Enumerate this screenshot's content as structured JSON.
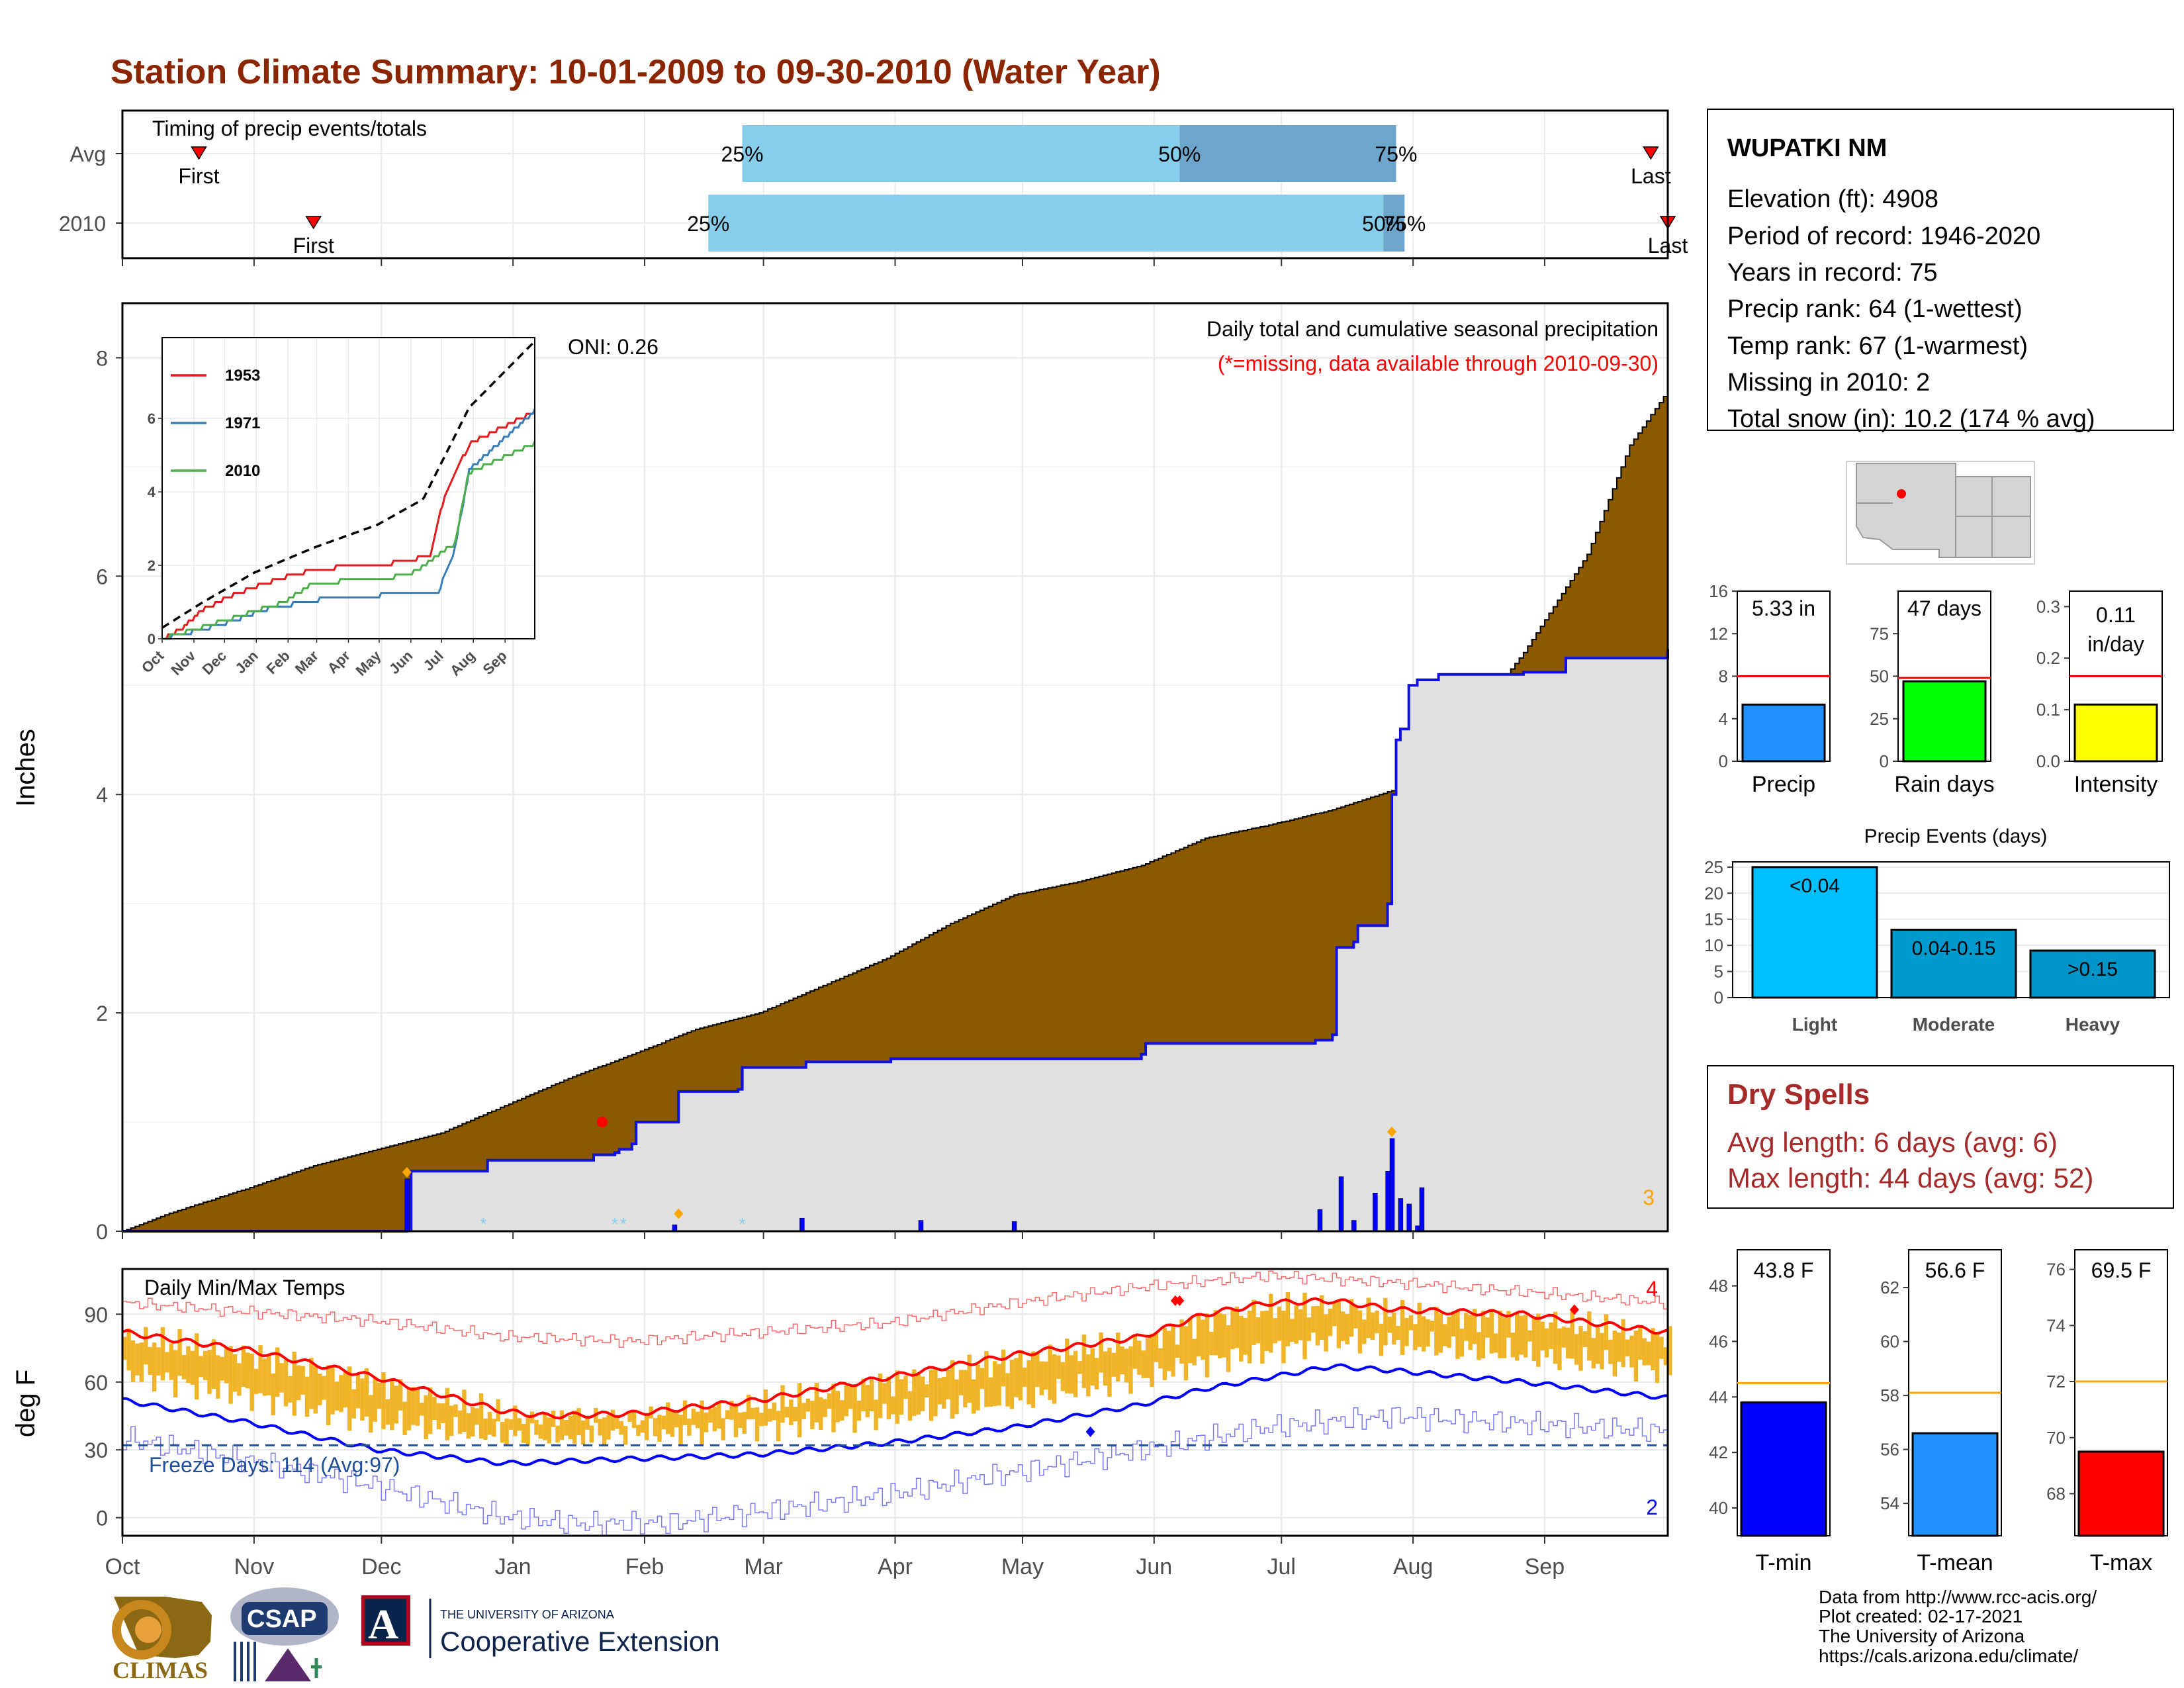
{
  "title": "Station Climate Summary: 10-01-2009 to 09-30-2010 (Water Year)",
  "colors": {
    "title": "#8B2500",
    "precip_cum": "#8B5A00",
    "precip_2010": "#1010E0",
    "fill_2010": "#E0E0E0",
    "tmax": "#FF0000",
    "tmin": "#0000FF",
    "daily_bar": "#F0B429",
    "dry_spell": "#A52A2A",
    "timing_light": "#87CEEB",
    "timing_dark": "#6CA6CD"
  },
  "months": [
    "Oct",
    "Nov",
    "Dec",
    "Jan",
    "Feb",
    "Mar",
    "Apr",
    "May",
    "Jun",
    "Jul",
    "Aug",
    "Sep"
  ],
  "timing": {
    "title": "Timing of precip events/totals",
    "rows": [
      {
        "label": "Avg",
        "first_day": 18,
        "last_day": 360,
        "p25": 146,
        "p50": 249,
        "p75": 300,
        "first_label": "First",
        "last_label": "Last",
        "p25_label": "25%",
        "p50_label": "50%",
        "p75_label": "75%"
      },
      {
        "label": "2010",
        "first_day": 45,
        "last_day": 364,
        "p25": 138,
        "p50": 297,
        "p75": 302,
        "first_label": "First",
        "last_label": "Last",
        "p25_label": "25%",
        "p50_label": "50%",
        "p75_label": "75%"
      }
    ]
  },
  "station": {
    "name": "WUPATKI NM",
    "lines": [
      "Elevation (ft): 4908",
      "Period of record: 1946-2020",
      "Years in record: 75",
      "Precip rank: 64 (1-wettest)",
      "Temp rank: 67 (1-warmest)",
      "Missing in 2010: 2",
      "Total snow (in): 10.2 (174 % avg)"
    ]
  },
  "precip_panel": {
    "title": "Daily total and cumulative seasonal precipitation",
    "note": "(*=missing, data available through 2010-09-30)",
    "ylabel": "Inches",
    "ylim": [
      0,
      8.5
    ],
    "yticks": [
      0,
      2,
      4,
      6,
      8
    ],
    "corner_count": "3",
    "oni": "ONI: 0.26"
  },
  "inset": {
    "yticks": [
      0,
      2,
      4,
      6
    ],
    "ylim": [
      0,
      8.2
    ],
    "legend": [
      "1953",
      "1971",
      "2010"
    ],
    "series_colors": [
      "#E41A1C",
      "#377EB8",
      "#4DAF4A"
    ]
  },
  "temp_panel": {
    "title": "Daily Min/Max Temps",
    "ylabel": "deg F",
    "ylim": [
      -8,
      110
    ],
    "yticks": [
      0,
      30,
      60,
      90
    ],
    "freeze_text": "Freeze Days: 114 (Avg:97)",
    "freeze_line": 32,
    "count_max": "4",
    "count_min": "2"
  },
  "mini_bars": [
    {
      "label": "Precip",
      "value_label": "5.33 in",
      "value": 5.33,
      "avg": 8.0,
      "ylim": [
        0,
        16
      ],
      "yticks": [
        "0",
        "4",
        "8",
        "12",
        "16"
      ],
      "color": "#1E90FF"
    },
    {
      "label": "Rain days",
      "value_label": "47 days",
      "value": 47,
      "avg": 49,
      "ylim": [
        0,
        100
      ],
      "yticks": [
        "0",
        "25",
        "50",
        "75"
      ],
      "color": "#00FF00"
    },
    {
      "label": "Intensity",
      "value_label": "0.11 in/day",
      "value": 0.11,
      "avg": 0.165,
      "ylim": [
        0,
        0.33
      ],
      "yticks": [
        "0.0",
        "0.1",
        "0.2",
        "0.3"
      ],
      "color": "#FFFF00"
    }
  ],
  "events": {
    "title": "Precip Events (days)",
    "categories": [
      "Light",
      "Moderate",
      "Heavy"
    ],
    "values": [
      25,
      13,
      9
    ],
    "bar_labels": [
      "<0.04",
      "0.04-0.15",
      ">0.15"
    ],
    "yticks": [
      "0",
      "5",
      "10",
      "15",
      "20",
      "25"
    ],
    "colors": [
      "#00BFFF",
      "#009ACD",
      "#0095C9"
    ]
  },
  "dry_spells": {
    "title": "Dry Spells",
    "avg_line": "Avg length: 6 days (avg: 6)",
    "max_line": "Max length: 44 days (avg: 52)"
  },
  "temp_bars": [
    {
      "label": "T-min",
      "value_label": "43.8 F",
      "value": 43.8,
      "avg": 44.5,
      "ylim": [
        39,
        49.3
      ],
      "yticks": [
        "40",
        "42",
        "44",
        "46",
        "48"
      ],
      "color": "#0000FF"
    },
    {
      "label": "T-mean",
      "value_label": "56.6 F",
      "value": 56.6,
      "avg": 58.1,
      "ylim": [
        52.8,
        63.4
      ],
      "yticks": [
        "54",
        "56",
        "58",
        "60",
        "62"
      ],
      "color": "#1E90FF"
    },
    {
      "label": "T-max",
      "value_label": "69.5 F",
      "value": 69.5,
      "avg": 72.0,
      "ylim": [
        66.5,
        76.7
      ],
      "yticks": [
        "68",
        "70",
        "72",
        "74",
        "76"
      ],
      "color": "#FF0000"
    }
  ],
  "footer": [
    "Data from http://www.rcc-acis.org/",
    "Plot created: 02-17-2021",
    "The University of Arizona",
    "https://cals.arizona.edu/climate/"
  ],
  "logos": {
    "climas": "CLIMAS",
    "csap": "CSAP",
    "ua_small": "THE UNIVERSITY OF ARIZONA",
    "ua_big": "Cooperative Extension",
    "ua_letter": "A"
  },
  "chart_data": [
    {
      "type": "area",
      "title": "Daily total and cumulative seasonal precipitation",
      "ylabel": "Inches",
      "ylim": [
        0,
        8.5
      ],
      "cumulative_avg_knots": [
        [
          0,
          0
        ],
        [
          10,
          0.15
        ],
        [
          30,
          0.4
        ],
        [
          45,
          0.6
        ],
        [
          60,
          0.75
        ],
        [
          75,
          0.9
        ],
        [
          90,
          1.15
        ],
        [
          105,
          1.4
        ],
        [
          120,
          1.62
        ],
        [
          135,
          1.85
        ],
        [
          150,
          2.0
        ],
        [
          165,
          2.25
        ],
        [
          180,
          2.5
        ],
        [
          195,
          2.82
        ],
        [
          210,
          3.08
        ],
        [
          225,
          3.2
        ],
        [
          240,
          3.35
        ],
        [
          255,
          3.6
        ],
        [
          270,
          3.72
        ],
        [
          285,
          3.86
        ],
        [
          300,
          4.05
        ],
        [
          315,
          4.55
        ],
        [
          330,
          5.3
        ],
        [
          345,
          6.2
        ],
        [
          355,
          7.2
        ],
        [
          364,
          7.7
        ]
      ],
      "cumulative_2010_steps": [
        [
          0,
          0
        ],
        [
          67,
          0.02
        ],
        [
          68,
          0.55
        ],
        [
          85,
          0.55
        ],
        [
          86,
          0.65
        ],
        [
          110,
          0.65
        ],
        [
          111,
          0.7
        ],
        [
          116,
          0.72
        ],
        [
          117,
          0.75
        ],
        [
          120,
          0.8
        ],
        [
          121,
          1.0
        ],
        [
          130,
          1.0
        ],
        [
          131,
          1.28
        ],
        [
          145,
          1.3
        ],
        [
          146,
          1.5
        ],
        [
          160,
          1.5
        ],
        [
          161,
          1.55
        ],
        [
          180,
          1.55
        ],
        [
          181,
          1.58
        ],
        [
          240,
          1.62
        ],
        [
          241,
          1.72
        ],
        [
          280,
          1.72
        ],
        [
          281,
          1.75
        ],
        [
          285,
          1.8
        ],
        [
          286,
          2.6
        ],
        [
          290,
          2.65
        ],
        [
          291,
          2.8
        ],
        [
          298,
          3.0
        ],
        [
          299,
          4.0
        ],
        [
          300,
          4.5
        ],
        [
          301,
          4.6
        ],
        [
          303,
          5.0
        ],
        [
          305,
          5.05
        ],
        [
          310,
          5.1
        ],
        [
          330,
          5.12
        ],
        [
          340,
          5.25
        ],
        [
          364,
          5.33
        ]
      ],
      "daily_bars_2010": [
        [
          67,
          0.48
        ],
        [
          130,
          0.06
        ],
        [
          160,
          0.12
        ],
        [
          188,
          0.1
        ],
        [
          210,
          0.09
        ],
        [
          305,
          0.05
        ],
        [
          282,
          0.2
        ],
        [
          287,
          0.5
        ],
        [
          290,
          0.1
        ],
        [
          295,
          0.35
        ],
        [
          298,
          0.55
        ],
        [
          299,
          0.85
        ],
        [
          301,
          0.3
        ],
        [
          303,
          0.25
        ],
        [
          306,
          0.4
        ]
      ]
    },
    {
      "type": "line",
      "title": "",
      "series": [
        {
          "name": "1953",
          "knots": [
            [
              0,
              0
            ],
            [
              20,
              0.3
            ],
            [
              40,
              0.8
            ],
            [
              70,
              1.2
            ],
            [
              110,
              1.6
            ],
            [
              150,
              1.9
            ],
            [
              200,
              2.0
            ],
            [
              240,
              2.1
            ],
            [
              262,
              2.3
            ],
            [
              275,
              3.8
            ],
            [
              300,
              5.3
            ],
            [
              364,
              6.2
            ]
          ]
        },
        {
          "name": "1971",
          "knots": [
            [
              0,
              0
            ],
            [
              30,
              0.2
            ],
            [
              60,
              0.4
            ],
            [
              100,
              0.8
            ],
            [
              160,
              1.1
            ],
            [
              220,
              1.2
            ],
            [
              270,
              1.3
            ],
            [
              285,
              2.3
            ],
            [
              300,
              4.6
            ],
            [
              364,
              6.2
            ]
          ]
        },
        {
          "name": "2010",
          "knots": [
            [
              0,
              0
            ],
            [
              67,
              0.55
            ],
            [
              120,
              1.0
            ],
            [
              146,
              1.5
            ],
            [
              241,
              1.72
            ],
            [
              286,
              2.6
            ],
            [
              299,
              4.5
            ],
            [
              364,
              5.33
            ]
          ]
        },
        {
          "name": "",
          "knots": [
            [
              0,
              0.3
            ],
            [
              40,
              1.0
            ],
            [
              90,
              1.8
            ],
            [
              150,
              2.5
            ],
            [
              210,
              3.1
            ],
            [
              255,
              3.8
            ],
            [
              300,
              6.3
            ],
            [
              364,
              8.1
            ]
          ]
        }
      ]
    },
    {
      "type": "line",
      "title": "Daily Min/Max Temps",
      "ylabel": "deg F",
      "ylim": [
        -8,
        110
      ],
      "tmax_smooth_knots": [
        [
          0,
          82
        ],
        [
          30,
          74
        ],
        [
          60,
          62
        ],
        [
          90,
          47
        ],
        [
          100,
          45
        ],
        [
          120,
          46
        ],
        [
          150,
          52
        ],
        [
          180,
          62
        ],
        [
          210,
          72
        ],
        [
          240,
          80
        ],
        [
          255,
          90
        ],
        [
          270,
          95
        ],
        [
          285,
          96
        ],
        [
          300,
          92
        ],
        [
          330,
          90
        ],
        [
          364,
          82
        ]
      ],
      "tmin_smooth_knots": [
        [
          0,
          52
        ],
        [
          30,
          42
        ],
        [
          60,
          30
        ],
        [
          90,
          24
        ],
        [
          120,
          26
        ],
        [
          150,
          28
        ],
        [
          180,
          33
        ],
        [
          210,
          40
        ],
        [
          240,
          50
        ],
        [
          255,
          57
        ],
        [
          270,
          62
        ],
        [
          285,
          67
        ],
        [
          300,
          65
        ],
        [
          330,
          60
        ],
        [
          364,
          53
        ]
      ],
      "record_max_knots": [
        [
          0,
          95
        ],
        [
          60,
          87
        ],
        [
          90,
          80
        ],
        [
          120,
          78
        ],
        [
          150,
          82
        ],
        [
          180,
          86
        ],
        [
          210,
          95
        ],
        [
          240,
          102
        ],
        [
          270,
          107
        ],
        [
          300,
          104
        ],
        [
          364,
          95
        ]
      ],
      "record_min_knots": [
        [
          0,
          35
        ],
        [
          30,
          25
        ],
        [
          60,
          14
        ],
        [
          90,
          0
        ],
        [
          110,
          -3
        ],
        [
          130,
          -2
        ],
        [
          160,
          5
        ],
        [
          180,
          10
        ],
        [
          210,
          20
        ],
        [
          240,
          30
        ],
        [
          270,
          40
        ],
        [
          300,
          45
        ],
        [
          364,
          38
        ]
      ]
    },
    {
      "type": "bar",
      "title": "Precip Events (days)",
      "categories": [
        "Light",
        "Moderate",
        "Heavy"
      ],
      "values": [
        25,
        13,
        9
      ]
    }
  ]
}
